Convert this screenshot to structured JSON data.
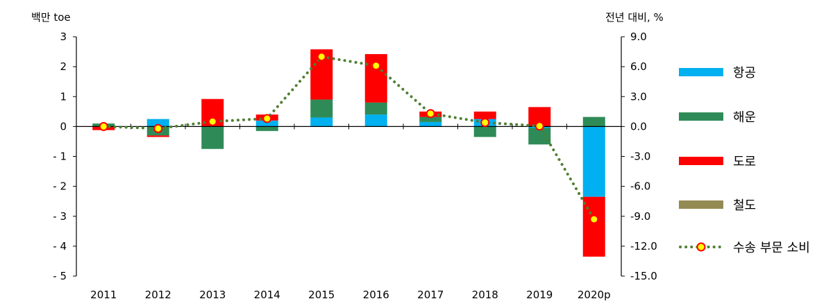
{
  "chart_data": {
    "type": "bar",
    "stacked": true,
    "categories": [
      "2011",
      "2012",
      "2013",
      "2014",
      "2015",
      "2016",
      "2017",
      "2018",
      "2019",
      "2020p"
    ],
    "series": [
      {
        "name": "항공",
        "color": "#00B0F0",
        "values": [
          0.0,
          0.25,
          0.0,
          0.2,
          0.3,
          0.4,
          0.15,
          0.25,
          -0.05,
          -2.35
        ]
      },
      {
        "name": "해운",
        "color": "#2E8B57",
        "values": [
          0.1,
          -0.3,
          -0.75,
          -0.15,
          0.6,
          0.4,
          0.17,
          -0.35,
          -0.55,
          0.32
        ]
      },
      {
        "name": "도로",
        "color": "#FF0000",
        "values": [
          -0.12,
          -0.05,
          0.92,
          0.2,
          1.68,
          1.62,
          0.18,
          0.25,
          0.65,
          -2.0
        ]
      },
      {
        "name": "철도",
        "color": "#948A54",
        "values": [
          0,
          0,
          0,
          0,
          0,
          0,
          0,
          0,
          0,
          0
        ]
      }
    ],
    "line_series": {
      "name": "수송 부문 소비",
      "axis": "right",
      "line_color": "#4F7F32",
      "marker_fill": "#FFFF00",
      "marker_stroke": "#FF0000",
      "values": [
        0.0,
        -0.2,
        0.5,
        0.8,
        7.0,
        6.1,
        1.3,
        0.4,
        0.05,
        -9.3
      ]
    },
    "y_left": {
      "label": "백만 toe",
      "range": [
        -5,
        3
      ],
      "ticks": [
        3,
        2,
        1,
        0,
        -1,
        -2,
        -3,
        -4,
        -5
      ],
      "tick_labels": [
        "3",
        "2",
        "1",
        "0",
        "- 1",
        "- 2",
        "- 3",
        "- 4",
        "- 5"
      ]
    },
    "y_right": {
      "label": "전년 대비, %",
      "range": [
        -15,
        9
      ],
      "ticks": [
        9,
        6,
        3,
        0,
        -3,
        -6,
        -9,
        -12,
        -15
      ],
      "tick_labels": [
        "9.0",
        "6.0",
        "3.0",
        "0.0",
        "-3.0",
        "-6.0",
        "-9.0",
        "-12.0",
        "-15.0"
      ]
    },
    "legend_position": "right",
    "grid": false
  }
}
